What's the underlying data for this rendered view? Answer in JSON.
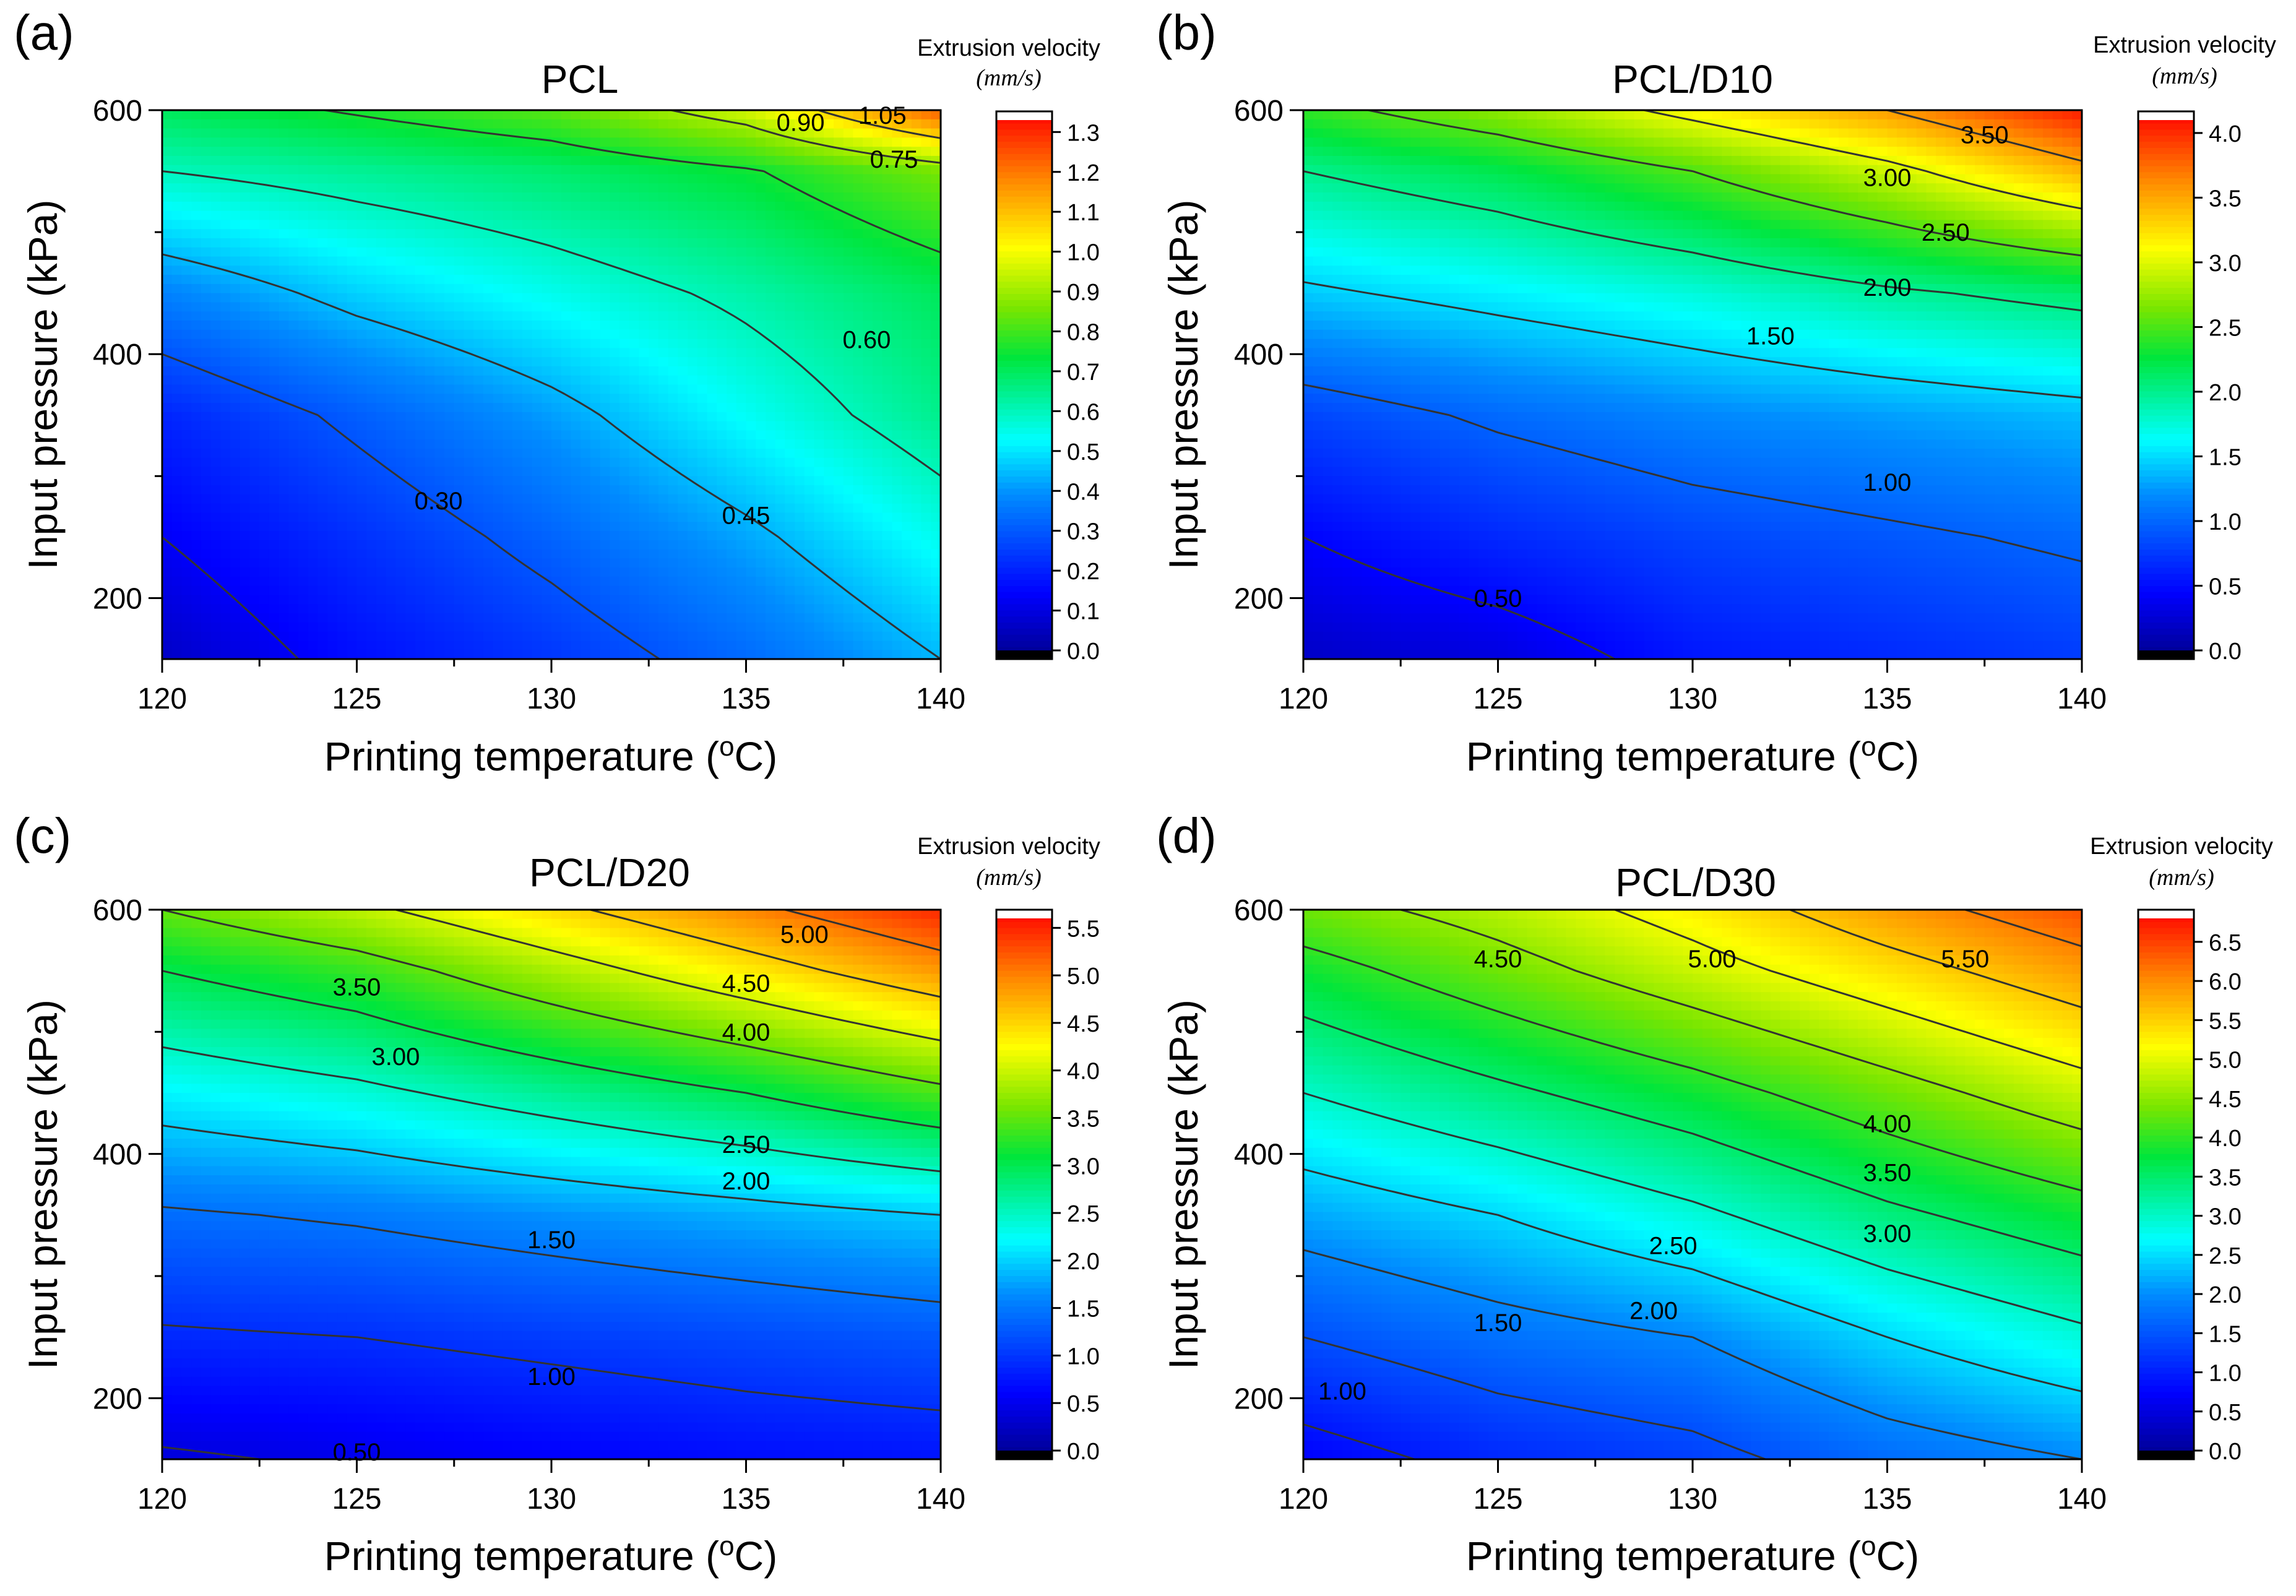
{
  "figure": {
    "background": "#ffffff"
  },
  "chart_data": [
    {
      "type": "contour",
      "panel_label": "(a)",
      "title": "PCL",
      "xlabel": "Printing temperature (",
      "xlabel_sup": "o",
      "xlabel_unit": "C)",
      "ylabel": "Input pressure (kPa)",
      "xlim": [
        120,
        140
      ],
      "ylim": [
        150,
        600
      ],
      "xticks": [
        120,
        125,
        130,
        135,
        140
      ],
      "xtick_labels": [
        "120",
        "125",
        "130",
        "135",
        "140"
      ],
      "yticks": [
        200,
        400,
        600
      ],
      "ytick_labels": [
        "200",
        "400",
        "600"
      ],
      "grid_x": [
        120,
        125,
        130,
        135,
        140
      ],
      "grid_y": [
        150,
        250,
        350,
        450,
        550,
        600
      ],
      "z": [
        [
          0.08,
          0.18,
          0.25,
          0.34,
          0.45
        ],
        [
          0.15,
          0.24,
          0.33,
          0.43,
          0.55
        ],
        [
          0.22,
          0.32,
          0.42,
          0.54,
          0.65
        ],
        [
          0.38,
          0.48,
          0.55,
          0.62,
          0.7
        ],
        [
          0.6,
          0.64,
          0.68,
          0.74,
          0.85
        ],
        [
          0.7,
          0.76,
          0.82,
          0.95,
          1.22
        ]
      ],
      "colorbar": {
        "title": "Extrusion velocity",
        "unit": "mm/s",
        "min": 0.0,
        "max": 1.33,
        "ticks": [
          0.0,
          0.1,
          0.2,
          0.3,
          0.4,
          0.5,
          0.6,
          0.7,
          0.8,
          0.9,
          1.0,
          1.1,
          1.2,
          1.3
        ],
        "tick_labels": [
          "0.0",
          "0.1",
          "0.2",
          "0.3",
          "0.4",
          "0.5",
          "0.6",
          "0.7",
          "0.8",
          "0.9",
          "1.0",
          "1.1",
          "1.2",
          "1.3"
        ]
      },
      "contour_levels": [
        0.15,
        0.3,
        0.45,
        0.6,
        0.75,
        0.9,
        1.05
      ],
      "contour_labels": [
        {
          "text": "0.30",
          "x": 127.1,
          "y": 280
        },
        {
          "text": "0.45",
          "x": 135.0,
          "y": 268
        },
        {
          "text": "0.60",
          "x": 138.1,
          "y": 412
        },
        {
          "text": "0.75",
          "x": 138.8,
          "y": 560
        },
        {
          "text": "0.90",
          "x": 136.4,
          "y": 590
        },
        {
          "text": "1.05",
          "x": 138.5,
          "y": 596
        }
      ]
    },
    {
      "type": "contour",
      "panel_label": "(b)",
      "title": "PCL/D10",
      "xlabel": "Printing temperature (",
      "xlabel_sup": "o",
      "xlabel_unit": "C)",
      "ylabel": "Input pressure (kPa)",
      "xlim": [
        120,
        140
      ],
      "ylim": [
        150,
        600
      ],
      "xticks": [
        120,
        125,
        130,
        135,
        140
      ],
      "xtick_labels": [
        "120",
        "125",
        "130",
        "135",
        "140"
      ],
      "yticks": [
        200,
        400,
        600
      ],
      "ytick_labels": [
        "200",
        "400",
        "600"
      ],
      "grid_x": [
        120,
        125,
        130,
        135,
        140
      ],
      "grid_y": [
        150,
        250,
        350,
        450,
        550,
        600
      ],
      "z": [
        [
          0.25,
          0.35,
          0.6,
          0.7,
          0.8
        ],
        [
          0.5,
          0.7,
          0.85,
          0.95,
          1.05
        ],
        [
          0.85,
          1.05,
          1.2,
          1.3,
          1.4
        ],
        [
          1.45,
          1.6,
          1.75,
          1.95,
          2.1
        ],
        [
          2.0,
          2.2,
          2.5,
          2.9,
          3.4
        ],
        [
          2.4,
          2.7,
          3.1,
          3.5,
          4.0
        ]
      ],
      "colorbar": {
        "title": "Extrusion velocity",
        "unit": "mm/s",
        "min": 0.0,
        "max": 4.1,
        "ticks": [
          0.0,
          0.5,
          1.0,
          1.5,
          2.0,
          2.5,
          3.0,
          3.5,
          4.0
        ],
        "tick_labels": [
          "0.0",
          "0.5",
          "1.0",
          "1.5",
          "2.0",
          "2.5",
          "3.0",
          "3.5",
          "4.0"
        ]
      },
      "contour_levels": [
        0.5,
        1.0,
        1.5,
        2.0,
        2.5,
        3.0,
        3.5
      ],
      "contour_labels": [
        {
          "text": "0.50",
          "x": 125.0,
          "y": 200
        },
        {
          "text": "1.00",
          "x": 135.0,
          "y": 295
        },
        {
          "text": "1.50",
          "x": 132.0,
          "y": 415
        },
        {
          "text": "2.00",
          "x": 135.0,
          "y": 455
        },
        {
          "text": "2.50",
          "x": 136.5,
          "y": 500
        },
        {
          "text": "3.00",
          "x": 135.0,
          "y": 545
        },
        {
          "text": "3.50",
          "x": 137.5,
          "y": 580
        }
      ]
    },
    {
      "type": "contour",
      "panel_label": "(c)",
      "title": "PCL/D20",
      "xlabel": "Printing temperature (",
      "xlabel_sup": "o",
      "xlabel_unit": "C)",
      "ylabel": "Input pressure (kPa)",
      "xlim": [
        120,
        140
      ],
      "ylim": [
        150,
        600
      ],
      "xticks": [
        120,
        125,
        130,
        135,
        140
      ],
      "xtick_labels": [
        "120",
        "125",
        "130",
        "135",
        "140"
      ],
      "yticks": [
        200,
        400,
        600
      ],
      "ytick_labels": [
        "200",
        "400",
        "600"
      ],
      "grid_x": [
        120,
        125,
        130,
        135,
        140
      ],
      "grid_y": [
        150,
        250,
        350,
        450,
        550,
        600
      ],
      "z": [
        [
          0.45,
          0.55,
          0.65,
          0.75,
          0.8
        ],
        [
          0.95,
          1.0,
          1.1,
          1.2,
          1.3
        ],
        [
          1.45,
          1.55,
          1.7,
          1.85,
          2.0
        ],
        [
          2.2,
          2.4,
          2.7,
          3.0,
          3.4
        ],
        [
          3.0,
          3.3,
          3.8,
          4.3,
          4.8
        ],
        [
          3.5,
          3.9,
          4.4,
          4.9,
          5.4
        ]
      ],
      "colorbar": {
        "title": "Extrusion velocity",
        "unit": "mm/s",
        "min": 0.0,
        "max": 5.6,
        "ticks": [
          0.0,
          0.5,
          1.0,
          1.5,
          2.0,
          2.5,
          3.0,
          3.5,
          4.0,
          4.5,
          5.0,
          5.5
        ],
        "tick_labels": [
          "0.0",
          "0.5",
          "1.0",
          "1.5",
          "2.0",
          "2.5",
          "3.0",
          "3.5",
          "4.0",
          "4.5",
          "5.0",
          "5.5"
        ]
      },
      "contour_levels": [
        0.5,
        1.0,
        1.5,
        2.0,
        2.5,
        3.0,
        3.5,
        4.0,
        4.5,
        5.0
      ],
      "contour_labels": [
        {
          "text": "0.50",
          "x": 125.0,
          "y": 156
        },
        {
          "text": "1.00",
          "x": 130.0,
          "y": 218
        },
        {
          "text": "1.50",
          "x": 130.0,
          "y": 330
        },
        {
          "text": "2.00",
          "x": 135.0,
          "y": 378
        },
        {
          "text": "2.50",
          "x": 135.0,
          "y": 408
        },
        {
          "text": "3.00",
          "x": 126.0,
          "y": 480
        },
        {
          "text": "3.50",
          "x": 125.0,
          "y": 537
        },
        {
          "text": "4.00",
          "x": 135.0,
          "y": 500
        },
        {
          "text": "4.50",
          "x": 135.0,
          "y": 540
        },
        {
          "text": "5.00",
          "x": 136.5,
          "y": 580
        }
      ]
    },
    {
      "type": "contour",
      "panel_label": "(d)",
      "title": "PCL/D30",
      "xlabel": "Printing temperature (",
      "xlabel_sup": "o",
      "xlabel_unit": "C)",
      "ylabel": "Input pressure (kPa)",
      "xlim": [
        120,
        140
      ],
      "ylim": [
        150,
        600
      ],
      "xticks": [
        120,
        125,
        130,
        135,
        140
      ],
      "xtick_labels": [
        "120",
        "125",
        "130",
        "135",
        "140"
      ],
      "yticks": [
        200,
        400,
        600
      ],
      "ytick_labels": [
        "200",
        "400",
        "600"
      ],
      "grid_x": [
        120,
        125,
        130,
        135,
        140
      ],
      "grid_y": [
        150,
        250,
        350,
        450,
        550,
        600
      ],
      "z": [
        [
          0.8,
          1.15,
          1.35,
          1.75,
          2.0
        ],
        [
          1.5,
          1.8,
          2.0,
          2.5,
          2.9
        ],
        [
          2.2,
          2.5,
          2.9,
          3.4,
          3.8
        ],
        [
          3.0,
          3.4,
          3.8,
          4.3,
          4.8
        ],
        [
          3.8,
          4.3,
          4.8,
          5.3,
          5.8
        ],
        [
          4.3,
          4.7,
          5.2,
          5.8,
          6.3
        ]
      ],
      "colorbar": {
        "title": "Extrusion velocity",
        "unit": "mm/s",
        "min": 0.0,
        "max": 6.8,
        "ticks": [
          0.0,
          0.5,
          1.0,
          1.5,
          2.0,
          2.5,
          3.0,
          3.5,
          4.0,
          4.5,
          5.0,
          5.5,
          6.0,
          6.5
        ],
        "tick_labels": [
          "0.0",
          "0.5",
          "1.0",
          "1.5",
          "2.0",
          "2.5",
          "3.0",
          "3.5",
          "4.0",
          "4.5",
          "5.0",
          "5.5",
          "6.0",
          "6.5"
        ]
      },
      "contour_levels": [
        1.0,
        1.5,
        2.0,
        2.5,
        3.0,
        3.5,
        4.0,
        4.5,
        5.0,
        5.5,
        6.0
      ],
      "contour_labels": [
        {
          "text": "1.00",
          "x": 121.0,
          "y": 206
        },
        {
          "text": "1.50",
          "x": 125.0,
          "y": 262
        },
        {
          "text": "2.00",
          "x": 129.0,
          "y": 272
        },
        {
          "text": "2.50",
          "x": 129.5,
          "y": 325
        },
        {
          "text": "3.00",
          "x": 135.0,
          "y": 335
        },
        {
          "text": "3.50",
          "x": 135.0,
          "y": 385
        },
        {
          "text": "4.00",
          "x": 135.0,
          "y": 425
        },
        {
          "text": "4.50",
          "x": 125.0,
          "y": 560
        },
        {
          "text": "5.00",
          "x": 130.5,
          "y": 560
        },
        {
          "text": "5.50",
          "x": 137.0,
          "y": 560
        }
      ]
    }
  ]
}
